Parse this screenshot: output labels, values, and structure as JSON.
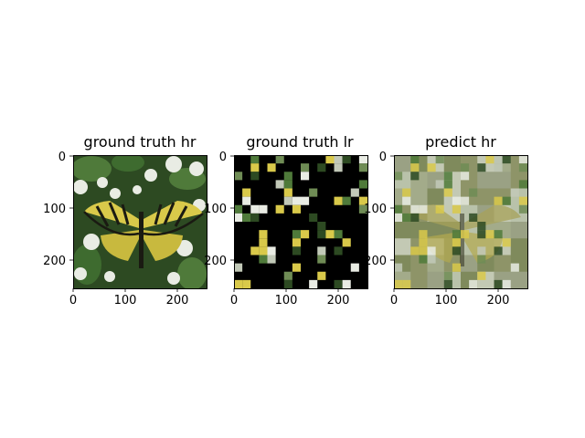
{
  "figure": {
    "panels": [
      {
        "title": "ground truth hr",
        "image_desc": "full-resolution butterfly on white flowers",
        "xticks": [
          "0",
          "100",
          "200"
        ],
        "yticks": [
          "0",
          "100",
          "200"
        ]
      },
      {
        "title": "ground truth lr",
        "image_desc": "sparse patches of butterfly image on black background",
        "xticks": [
          "0",
          "100",
          "200"
        ],
        "yticks": [
          "0",
          "100",
          "200"
        ]
      },
      {
        "title": "predict hr",
        "image_desc": "blurry blocky reconstruction of butterfly image",
        "xticks": [
          "0",
          "100",
          "200"
        ],
        "yticks": [
          "0",
          "100",
          "200"
        ]
      }
    ],
    "colors": {
      "yellow": "#d9c94a",
      "dark_green": "#2d4a22",
      "leaf_green": "#4f7a3a",
      "flower_white": "#e9ece4",
      "black": "#000000",
      "recon_olive": "#8e9468",
      "recon_light": "#b9c2aa"
    }
  }
}
